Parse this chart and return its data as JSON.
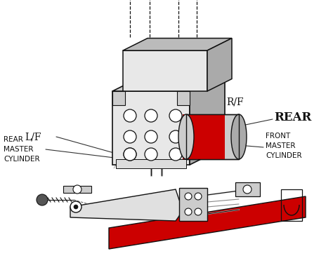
{
  "bg_color": "#ffffff",
  "line_color": "#111111",
  "red_color": "#cc0000",
  "gray_light": "#e8e8e8",
  "gray_mid": "#cccccc",
  "gray_dark": "#aaaaaa",
  "labels": {
    "LF": "L/F",
    "RF": "R/F",
    "REAR": "REAR",
    "REAR_MC": "REAR\nMASTER\nCYLINDER",
    "FRONT_MC": "FRONT\nMASTER\nCYLINDER"
  },
  "figsize": [
    4.74,
    3.95
  ],
  "dpi": 100
}
